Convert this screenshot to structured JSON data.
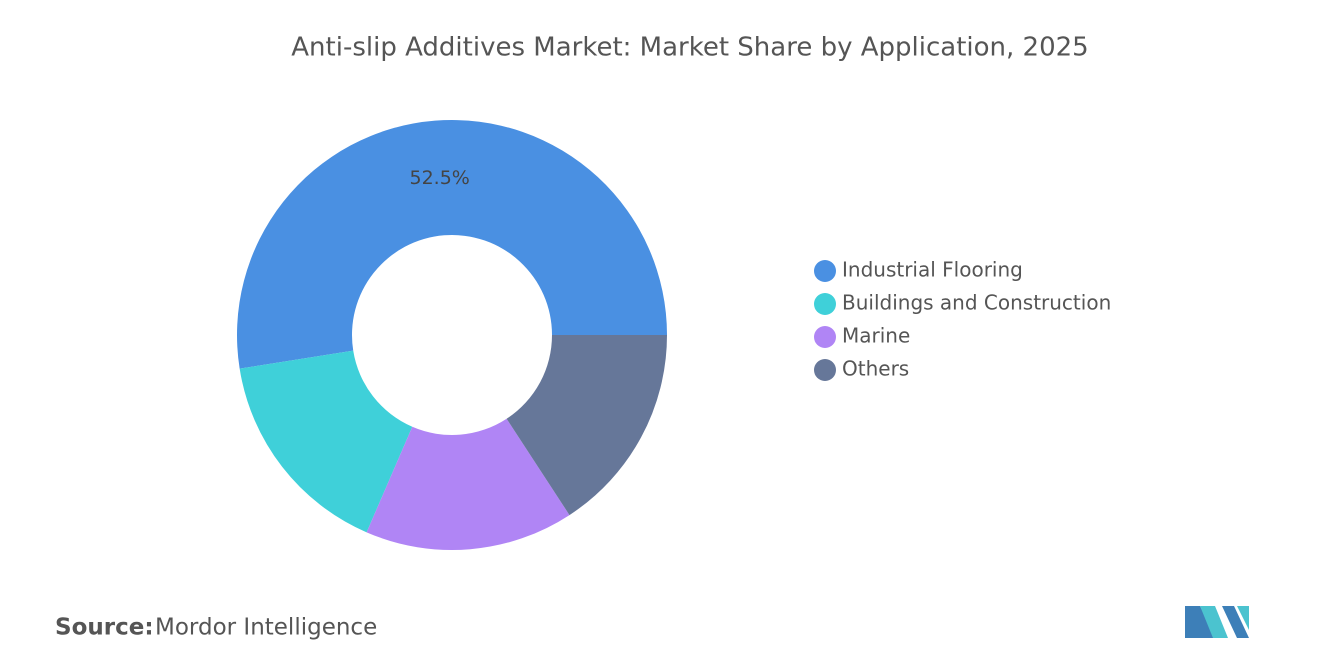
{
  "chart_data": {
    "type": "donut",
    "title": "Anti-slip Additives Market: Market Share by Application, 2025",
    "categories": [
      "Industrial Flooring",
      "Buildings and Construction",
      "Marine",
      "Others"
    ],
    "values": [
      52.5,
      16.0,
      15.7,
      15.8
    ],
    "value_labels": [
      "52.5%",
      null,
      null,
      null
    ],
    "colors": [
      "#4a90e2",
      "#3fd0d9",
      "#b085f5",
      "#667799"
    ],
    "legend": "right",
    "source_label": "Source:",
    "source": "Mordor Intelligence"
  }
}
